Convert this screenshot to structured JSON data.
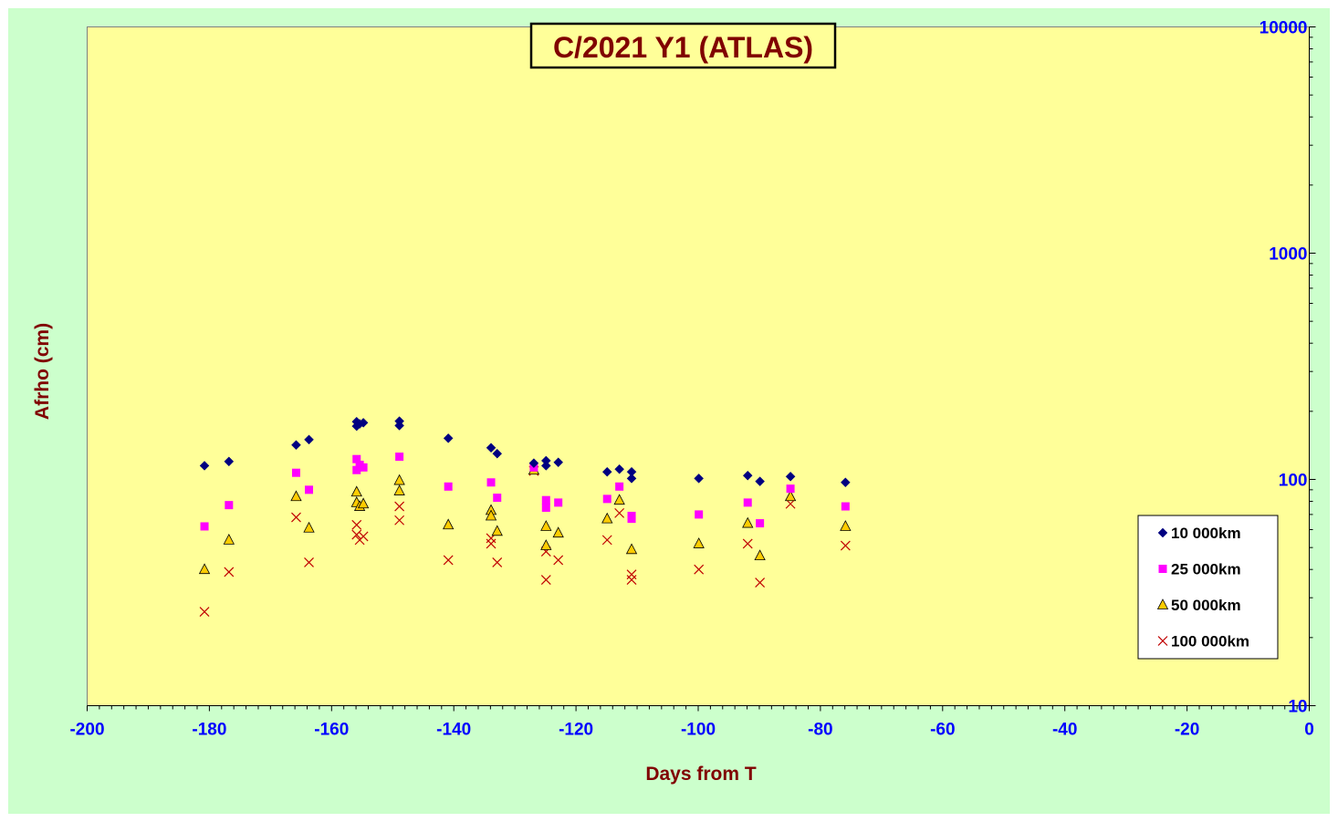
{
  "chart_data": {
    "type": "scatter",
    "title": "C/2021 Y1 (ATLAS)",
    "xlabel": "Days from T",
    "ylabel": "Afrho (cm)",
    "xlim": [
      -200,
      0
    ],
    "ylim": [
      10,
      10000
    ],
    "y_scale": "log",
    "y_axis_side": "right",
    "x_ticks": [
      "-200",
      "-180",
      "-160",
      "-140",
      "-120",
      "-100",
      "-80",
      "-60",
      "-40",
      "-20",
      "0"
    ],
    "y_ticks": [
      "10",
      "100",
      "1000",
      "10000"
    ],
    "legend_position": "bottom-right",
    "colors": {
      "outer_background": "#ccffcc",
      "plot_background": "#ffff99",
      "title_text": "#800000",
      "axis_title_text": "#800000",
      "tick_text": "#0000ff"
    },
    "series": [
      {
        "name": "10 000km",
        "marker": "diamond",
        "color": "#000080",
        "points": [
          [
            -180.8,
            115
          ],
          [
            -176.8,
            120
          ],
          [
            -165.8,
            142
          ],
          [
            -163.7,
            150
          ],
          [
            -155.9,
            180
          ],
          [
            -155.9,
            172
          ],
          [
            -155.4,
            176
          ],
          [
            -154.8,
            178
          ],
          [
            -148.9,
            181
          ],
          [
            -148.9,
            173
          ],
          [
            -140.9,
            152
          ],
          [
            -133.9,
            138
          ],
          [
            -132.9,
            130
          ],
          [
            -126.9,
            118
          ],
          [
            -124.9,
            121
          ],
          [
            -124.9,
            115
          ],
          [
            -122.9,
            119
          ],
          [
            -114.9,
            108
          ],
          [
            -112.9,
            111
          ],
          [
            -110.9,
            108
          ],
          [
            -110.9,
            101
          ],
          [
            -99.9,
            101
          ],
          [
            -91.9,
            104
          ],
          [
            -89.9,
            98
          ],
          [
            -84.9,
            103
          ],
          [
            -75.9,
            97
          ]
        ]
      },
      {
        "name": "25 000km",
        "marker": "square",
        "color": "#ff00ff",
        "points": [
          [
            -180.8,
            62
          ],
          [
            -176.8,
            77
          ],
          [
            -165.8,
            107
          ],
          [
            -163.7,
            90
          ],
          [
            -155.9,
            123
          ],
          [
            -155.9,
            110
          ],
          [
            -155.4,
            116
          ],
          [
            -154.8,
            113
          ],
          [
            -148.9,
            126
          ],
          [
            -140.9,
            93
          ],
          [
            -133.9,
            97
          ],
          [
            -132.9,
            83
          ],
          [
            -126.9,
            113
          ],
          [
            -124.9,
            81
          ],
          [
            -124.9,
            75
          ],
          [
            -122.9,
            79
          ],
          [
            -114.9,
            82
          ],
          [
            -112.9,
            93
          ],
          [
            -110.9,
            69
          ],
          [
            -110.9,
            67
          ],
          [
            -99.9,
            70
          ],
          [
            -91.9,
            79
          ],
          [
            -89.9,
            64
          ],
          [
            -84.9,
            91
          ],
          [
            -75.9,
            76
          ]
        ]
      },
      {
        "name": "50 000km",
        "marker": "triangle",
        "color": "#ffcc00",
        "points": [
          [
            -180.8,
            40
          ],
          [
            -176.8,
            54
          ],
          [
            -165.8,
            84
          ],
          [
            -163.7,
            61
          ],
          [
            -155.9,
            88
          ],
          [
            -155.9,
            79
          ],
          [
            -155.4,
            76
          ],
          [
            -154.8,
            78
          ],
          [
            -148.9,
            99
          ],
          [
            -148.9,
            89
          ],
          [
            -140.9,
            63
          ],
          [
            -133.9,
            73
          ],
          [
            -133.9,
            69
          ],
          [
            -132.9,
            59
          ],
          [
            -126.9,
            110
          ],
          [
            -124.9,
            62
          ],
          [
            -124.9,
            51
          ],
          [
            -122.9,
            58
          ],
          [
            -114.9,
            67
          ],
          [
            -112.9,
            81
          ],
          [
            -110.9,
            49
          ],
          [
            -99.9,
            52
          ],
          [
            -91.9,
            64
          ],
          [
            -89.9,
            46
          ],
          [
            -84.9,
            84
          ],
          [
            -75.9,
            62
          ]
        ]
      },
      {
        "name": "100 000km",
        "marker": "x",
        "color": "#c00000",
        "points": [
          [
            -180.8,
            26
          ],
          [
            -176.8,
            39
          ],
          [
            -165.8,
            68
          ],
          [
            -163.7,
            43
          ],
          [
            -155.9,
            63
          ],
          [
            -155.9,
            57
          ],
          [
            -155.4,
            54
          ],
          [
            -154.8,
            56
          ],
          [
            -148.9,
            76
          ],
          [
            -148.9,
            66
          ],
          [
            -140.9,
            44
          ],
          [
            -133.9,
            55
          ],
          [
            -133.9,
            52
          ],
          [
            -132.9,
            43
          ],
          [
            -126.9,
            109
          ],
          [
            -124.9,
            48
          ],
          [
            -124.9,
            36
          ],
          [
            -122.9,
            44
          ],
          [
            -114.9,
            54
          ],
          [
            -112.9,
            71
          ],
          [
            -110.9,
            38
          ],
          [
            -110.9,
            36
          ],
          [
            -99.9,
            40
          ],
          [
            -91.9,
            52
          ],
          [
            -89.9,
            35
          ],
          [
            -84.9,
            78
          ],
          [
            -75.9,
            51
          ]
        ]
      }
    ]
  }
}
